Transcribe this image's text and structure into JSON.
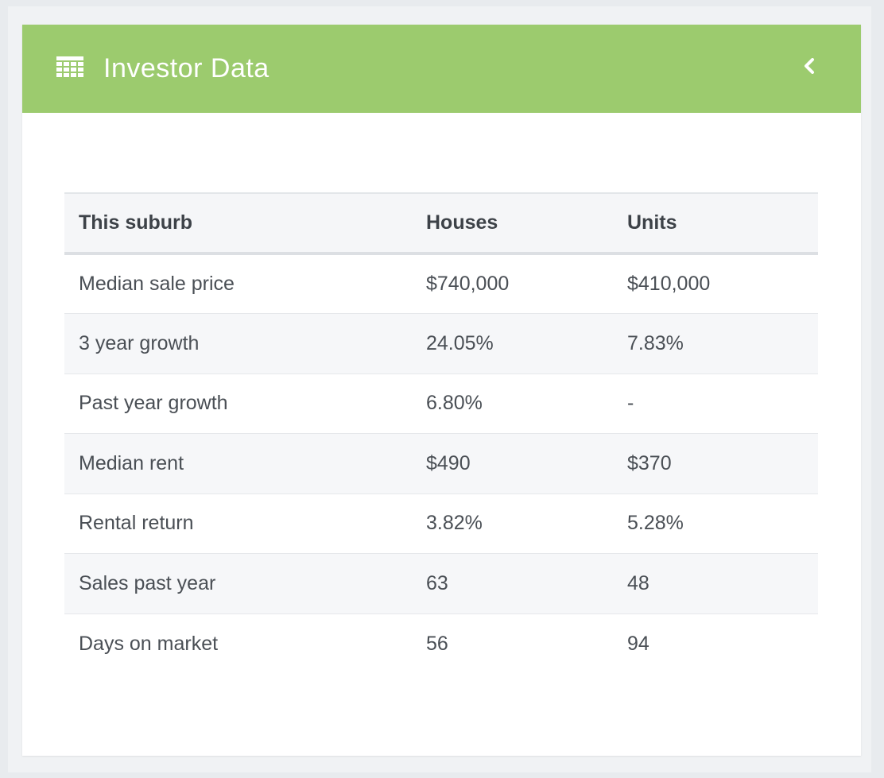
{
  "panel": {
    "title": "Investor Data",
    "icon": "table-grid-icon",
    "collapse_icon": "chevron-left-icon",
    "header_color": "#9ccb6e"
  },
  "table": {
    "headers": [
      "This suburb",
      "Houses",
      "Units"
    ],
    "rows": [
      [
        "Median sale price",
        "$740,000",
        "$410,000"
      ],
      [
        "3 year growth",
        "24.05%",
        "7.83%"
      ],
      [
        "Past year growth",
        "6.80%",
        "-"
      ],
      [
        "Median rent",
        "$490",
        "$370"
      ],
      [
        "Rental return",
        "3.82%",
        "5.28%"
      ],
      [
        "Sales past year",
        "63",
        "48"
      ],
      [
        "Days on market",
        "56",
        "94"
      ]
    ]
  }
}
